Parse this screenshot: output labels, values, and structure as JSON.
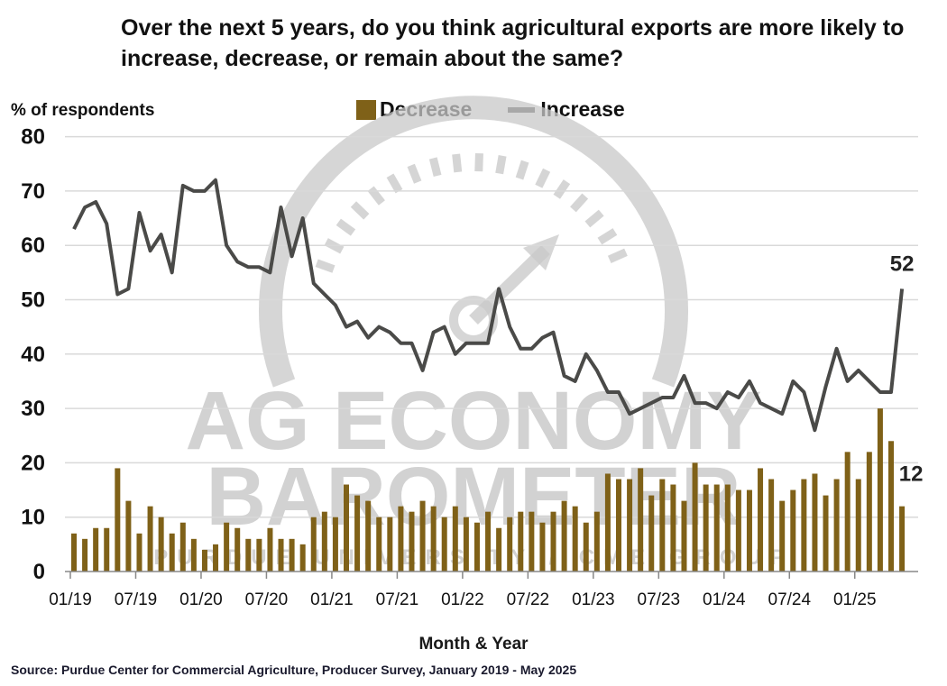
{
  "title": "Over the next 5 years, do you think agricultural exports are more likely to increase, decrease, or remain about the same?",
  "ylabel": "% of respondents",
  "xlabel": "Month & Year",
  "source": "Source: Purdue Center for Commercial Agriculture, Producer Survey, January 2019 - May 2025",
  "watermark": {
    "line1": "AG ECONOMY",
    "line2": "BAROMETER",
    "line3": "PURDUE UNIVERSITY / CME GROUP"
  },
  "colors": {
    "decrease": "#7f6118",
    "increase": "#4a4a48",
    "grid": "#d9d9d9",
    "watermark": "#c8c8c8"
  },
  "chart_data": {
    "type": "bar",
    "title": "Over the next 5 years, do you think agricultural exports are more likely to increase, decrease, or remain about the same?",
    "xlabel": "Month & Year",
    "ylabel": "% of respondents",
    "ylim": [
      0,
      80
    ],
    "yticks": [
      0,
      10,
      20,
      30,
      40,
      50,
      60,
      70,
      80
    ],
    "grid": true,
    "legend": "top",
    "categories": [
      "01/19",
      "02/19",
      "03/19",
      "04/19",
      "05/19",
      "06/19",
      "07/19",
      "08/19",
      "09/19",
      "10/19",
      "11/19",
      "12/19",
      "01/20",
      "02/20",
      "03/20",
      "04/20",
      "05/20",
      "06/20",
      "07/20",
      "08/20",
      "09/20",
      "10/20",
      "11/20",
      "12/20",
      "01/21",
      "02/21",
      "03/21",
      "04/21",
      "05/21",
      "06/21",
      "07/21",
      "08/21",
      "09/21",
      "10/21",
      "11/21",
      "12/21",
      "01/22",
      "02/22",
      "03/22",
      "04/22",
      "05/22",
      "06/22",
      "07/22",
      "08/22",
      "09/22",
      "10/22",
      "11/22",
      "12/22",
      "01/23",
      "02/23",
      "03/23",
      "04/23",
      "05/23",
      "06/23",
      "07/23",
      "08/23",
      "09/23",
      "10/23",
      "11/23",
      "12/23",
      "01/24",
      "02/24",
      "03/24",
      "04/24",
      "05/24",
      "06/24",
      "07/24",
      "08/24",
      "09/24",
      "10/24",
      "11/24",
      "12/24",
      "01/25",
      "02/25",
      "03/25",
      "04/25",
      "05/25"
    ],
    "xtick_labels": [
      "01/19",
      "07/19",
      "01/20",
      "07/20",
      "01/21",
      "07/21",
      "01/22",
      "07/22",
      "01/23",
      "07/23",
      "01/24",
      "07/24",
      "01/25"
    ],
    "series": [
      {
        "name": "Decrease",
        "type": "bar",
        "values": [
          7,
          6,
          8,
          8,
          19,
          13,
          7,
          12,
          10,
          7,
          9,
          6,
          4,
          5,
          9,
          8,
          6,
          6,
          8,
          6,
          6,
          5,
          10,
          11,
          10,
          16,
          14,
          13,
          10,
          10,
          12,
          11,
          13,
          12,
          10,
          12,
          10,
          9,
          11,
          8,
          10,
          11,
          11,
          9,
          11,
          13,
          12,
          9,
          11,
          18,
          17,
          17,
          19,
          14,
          17,
          16,
          13,
          20,
          16,
          16,
          16,
          15,
          15,
          19,
          17,
          13,
          15,
          17,
          18,
          14,
          17,
          22,
          17,
          22,
          30,
          24,
          12
        ]
      },
      {
        "name": "Increase",
        "type": "line",
        "values": [
          63,
          67,
          68,
          64,
          51,
          52,
          66,
          59,
          62,
          55,
          71,
          70,
          70,
          72,
          60,
          57,
          56,
          56,
          55,
          67,
          58,
          65,
          53,
          51,
          49,
          45,
          46,
          43,
          45,
          44,
          42,
          42,
          37,
          44,
          45,
          40,
          42,
          42,
          42,
          52,
          45,
          41,
          41,
          43,
          44,
          36,
          35,
          40,
          37,
          33,
          33,
          29,
          30,
          31,
          32,
          32,
          36,
          31,
          31,
          30,
          33,
          32,
          35,
          31,
          30,
          29,
          35,
          33,
          26,
          34,
          41,
          35,
          37,
          35,
          33,
          33,
          52
        ]
      }
    ],
    "annotations": [
      {
        "series": "Increase",
        "category": "05/25",
        "text": "52"
      },
      {
        "series": "Decrease",
        "category": "05/25",
        "text": "12"
      }
    ]
  }
}
